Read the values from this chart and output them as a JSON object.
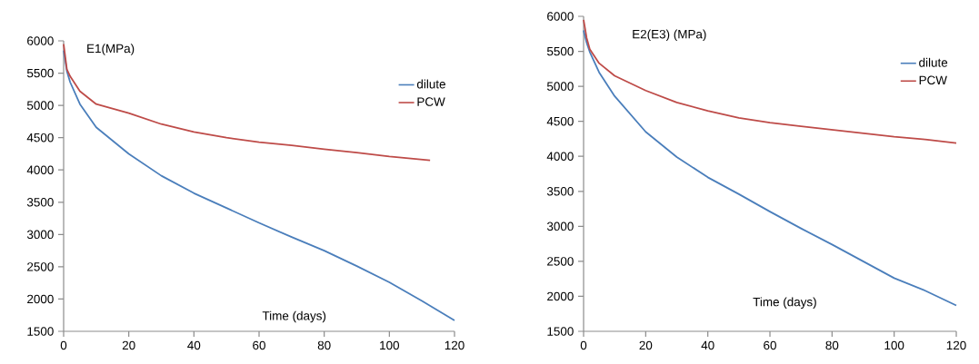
{
  "chart_data": [
    {
      "type": "line",
      "xlabel": "Time (days)",
      "ylabel": "E1(MPa)",
      "xlim": [
        0,
        120
      ],
      "ylim": [
        1500,
        6000
      ],
      "xticks": [
        0,
        20,
        40,
        60,
        80,
        100,
        120
      ],
      "yticks": [
        1500,
        2000,
        2500,
        3000,
        3500,
        4000,
        4500,
        5000,
        5500,
        6000
      ],
      "legend": "top right",
      "marker": "none",
      "line_style": "solid",
      "series": [
        {
          "name": "dilute",
          "color": "#4a7ebb",
          "x": [
            0,
            1,
            2,
            5,
            10,
            20,
            30,
            40,
            50,
            60,
            70,
            80,
            90,
            100,
            110,
            120
          ],
          "values": [
            5850,
            5530,
            5360,
            5020,
            4660,
            4250,
            3910,
            3640,
            3410,
            3180,
            2960,
            2750,
            2510,
            2260,
            1970,
            1670
          ]
        },
        {
          "name": "PCW",
          "color": "#be4b48",
          "x": [
            0,
            1,
            2,
            5,
            10,
            20,
            30,
            40,
            50,
            60,
            70,
            80,
            90,
            100,
            112.5
          ],
          "values": [
            5950,
            5560,
            5450,
            5220,
            5020,
            4880,
            4710,
            4590,
            4500,
            4430,
            4380,
            4320,
            4270,
            4210,
            4150
          ]
        }
      ]
    },
    {
      "type": "line",
      "xlabel": "Time (days)",
      "ylabel": "E2(E3) (MPa)",
      "xlim": [
        0,
        120
      ],
      "ylim": [
        1500,
        6000
      ],
      "xticks": [
        0,
        20,
        40,
        60,
        80,
        100,
        120
      ],
      "yticks": [
        1500,
        2000,
        2500,
        3000,
        3500,
        4000,
        4500,
        5000,
        5500,
        6000
      ],
      "legend": "top right",
      "marker": "none",
      "line_style": "solid",
      "series": [
        {
          "name": "dilute",
          "color": "#4a7ebb",
          "x": [
            0,
            1,
            2,
            5,
            10,
            20,
            30,
            40,
            50,
            60,
            70,
            80,
            90,
            100,
            110,
            120
          ],
          "values": [
            5800,
            5620,
            5490,
            5200,
            4860,
            4350,
            3990,
            3700,
            3460,
            3210,
            2970,
            2740,
            2500,
            2260,
            2080,
            1870
          ]
        },
        {
          "name": "PCW",
          "color": "#be4b48",
          "x": [
            0,
            1,
            2,
            5,
            10,
            20,
            30,
            40,
            50,
            60,
            70,
            80,
            90,
            100,
            110,
            120
          ],
          "values": [
            5950,
            5690,
            5530,
            5330,
            5150,
            4940,
            4770,
            4650,
            4550,
            4480,
            4430,
            4380,
            4330,
            4280,
            4240,
            4190
          ]
        }
      ]
    }
  ]
}
